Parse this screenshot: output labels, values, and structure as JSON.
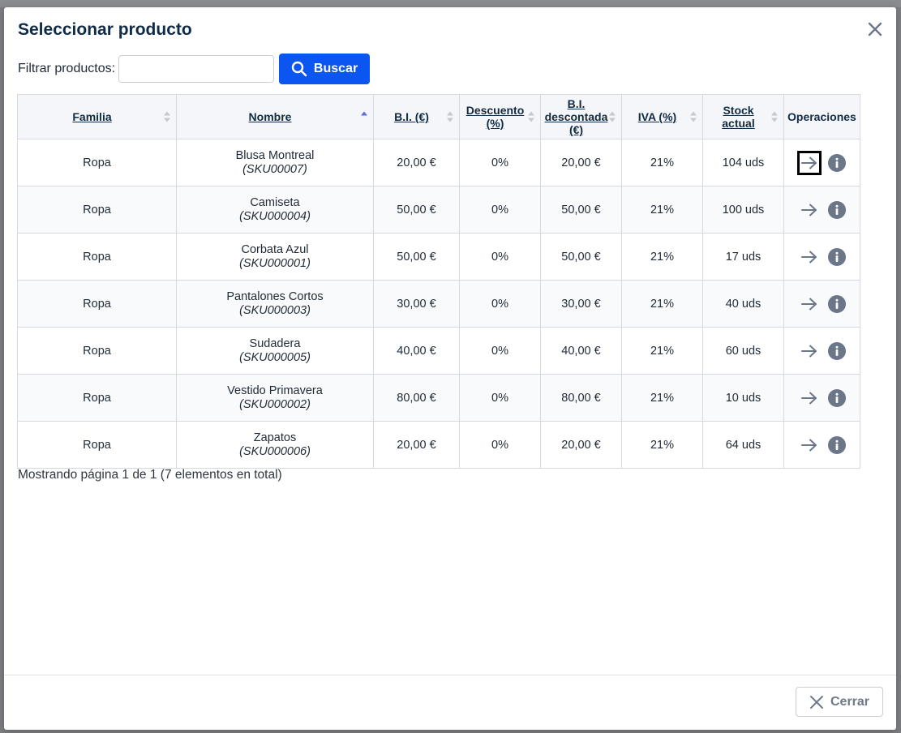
{
  "modal": {
    "title": "Seleccionar producto",
    "filter_label": "Filtrar productos:",
    "filter_value": "",
    "filter_placeholder": "",
    "search_label": "Buscar",
    "close_label": "Cerrar",
    "paging_text": "Mostrando página 1 de 1 (7 elementos en total)"
  },
  "table": {
    "columns": [
      {
        "label": "Familia",
        "sort": "none"
      },
      {
        "label": "Nombre",
        "sort": "asc"
      },
      {
        "label": "B.I. (€)",
        "sort": "none"
      },
      {
        "label": "Descuento (%)",
        "sort": "none"
      },
      {
        "label": "B.I. descontada (€)",
        "sort": "none"
      },
      {
        "label": "IVA (%)",
        "sort": "none"
      },
      {
        "label": "Stock actual",
        "sort": "none"
      },
      {
        "label": "Operaciones",
        "sort": null
      }
    ],
    "rows": [
      {
        "familia": "Ropa",
        "nombre": "Blusa Montreal",
        "sku": "(SKU00007)",
        "bi": "20,00 €",
        "descuento": "0%",
        "bi_desc": "20,00 €",
        "iva": "21%",
        "stock": "104 uds"
      },
      {
        "familia": "Ropa",
        "nombre": "Camiseta",
        "sku": "(SKU000004)",
        "bi": "50,00 €",
        "descuento": "0%",
        "bi_desc": "50,00 €",
        "iva": "21%",
        "stock": "100 uds"
      },
      {
        "familia": "Ropa",
        "nombre": "Corbata Azul",
        "sku": "(SKU000001)",
        "bi": "50,00 €",
        "descuento": "0%",
        "bi_desc": "50,00 €",
        "iva": "21%",
        "stock": "17 uds"
      },
      {
        "familia": "Ropa",
        "nombre": "Pantalones Cortos",
        "sku": "(SKU000003)",
        "bi": "30,00 €",
        "descuento": "0%",
        "bi_desc": "30,00 €",
        "iva": "21%",
        "stock": "40 uds"
      },
      {
        "familia": "Ropa",
        "nombre": "Sudadera",
        "sku": "(SKU000005)",
        "bi": "40,00 €",
        "descuento": "0%",
        "bi_desc": "40,00 €",
        "iva": "21%",
        "stock": "60 uds"
      },
      {
        "familia": "Ropa",
        "nombre": "Vestido Primavera",
        "sku": "(SKU000002)",
        "bi": "80,00 €",
        "descuento": "0%",
        "bi_desc": "80,00 €",
        "iva": "21%",
        "stock": "10 uds"
      },
      {
        "familia": "Ropa",
        "nombre": "Zapatos",
        "sku": "(SKU000006)",
        "bi": "20,00 €",
        "descuento": "0%",
        "bi_desc": "20,00 €",
        "iva": "21%",
        "stock": "64 uds"
      }
    ]
  },
  "colors": {
    "primary": "#0b55f0",
    "title": "#0f2b46",
    "icon_gray": "#6b7689",
    "sort_active": "#5b6cdc",
    "sort_inactive": "#c4c9d1"
  },
  "icons": {
    "close": "close-icon",
    "search": "search-icon",
    "select": "arrow-right-icon",
    "info": "info-icon",
    "sort": "sort-icon"
  }
}
